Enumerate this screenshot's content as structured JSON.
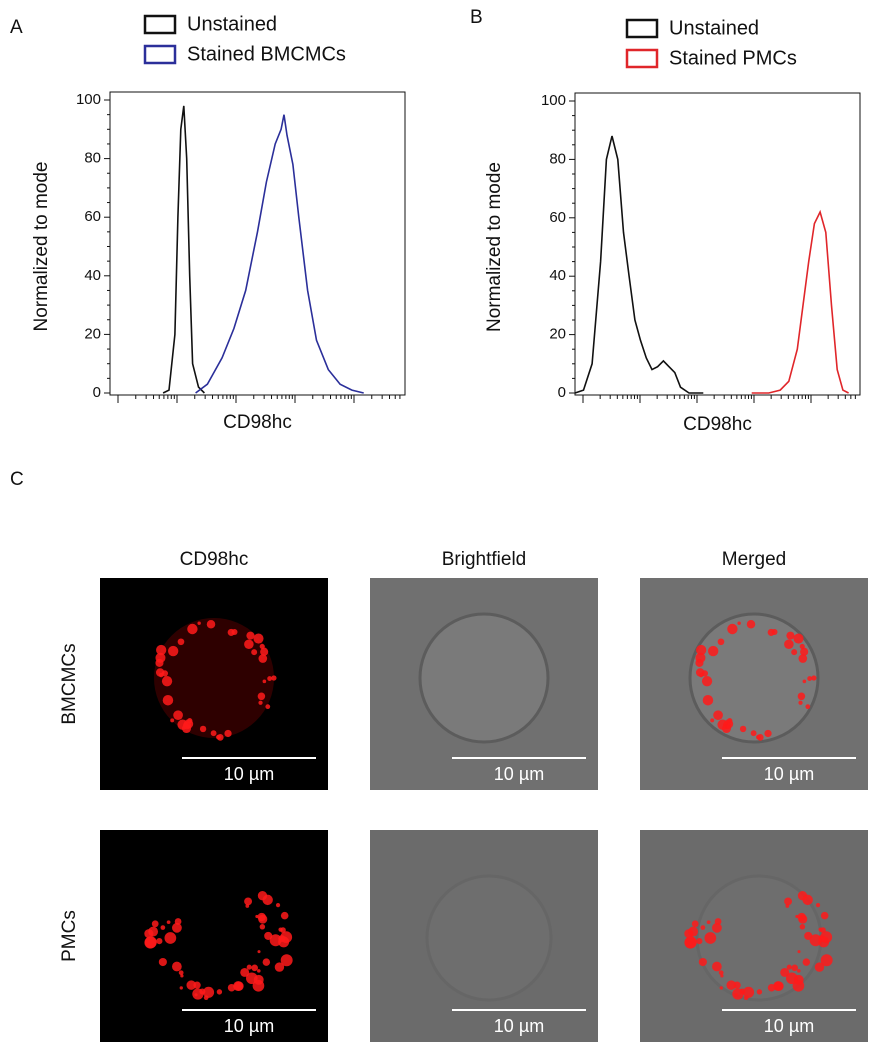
{
  "chart_data": [
    {
      "type": "line",
      "label": "A",
      "xlabel": "CD98hc",
      "ylabel": "Normalized to mode",
      "xlim": [
        0,
        100
      ],
      "ylim": [
        0,
        100
      ],
      "yticks": [
        0,
        20,
        40,
        60,
        80,
        100
      ],
      "series": [
        {
          "name": "Unstained",
          "color": "#111111",
          "x": [
            18,
            20,
            22,
            23,
            24,
            25,
            26,
            27,
            28,
            30,
            32
          ],
          "values": [
            0,
            1,
            20,
            60,
            90,
            98,
            80,
            40,
            10,
            2,
            0
          ]
        },
        {
          "name": "Stained BMCMCs",
          "color": "#2b2f9a",
          "x": [
            29,
            33,
            38,
            42,
            46,
            50,
            53,
            56,
            58,
            59,
            60,
            62,
            64,
            67,
            70,
            74,
            78,
            82,
            86
          ],
          "values": [
            0,
            3,
            12,
            22,
            35,
            55,
            72,
            85,
            90,
            95,
            88,
            78,
            60,
            35,
            18,
            8,
            3,
            1,
            0
          ]
        }
      ]
    },
    {
      "type": "line",
      "label": "B",
      "xlabel": "CD98hc",
      "ylabel": "Normalized to mode",
      "xlim": [
        0,
        100
      ],
      "ylim": [
        0,
        100
      ],
      "yticks": [
        0,
        20,
        40,
        60,
        80,
        100
      ],
      "series": [
        {
          "name": "Unstained",
          "color": "#111111",
          "x": [
            0,
            3,
            6,
            9,
            11,
            13,
            15,
            17,
            19,
            21,
            23,
            25,
            27,
            29,
            31,
            33,
            35,
            37,
            40,
            45
          ],
          "values": [
            0,
            1,
            10,
            45,
            80,
            88,
            80,
            55,
            40,
            25,
            18,
            12,
            8,
            9,
            11,
            9,
            7,
            2,
            0,
            0
          ]
        },
        {
          "name": "Stained PMCs",
          "color": "#e0262a",
          "x": [
            62,
            68,
            72,
            75,
            78,
            80,
            82,
            84,
            86,
            88,
            90,
            92,
            94,
            96
          ],
          "values": [
            0,
            0,
            1,
            4,
            15,
            30,
            45,
            58,
            62,
            55,
            30,
            8,
            1,
            0
          ]
        }
      ]
    }
  ],
  "panel_c": {
    "label": "C",
    "columns": [
      "CD98hc",
      "Brightfield",
      "Merged"
    ],
    "rows": [
      "BMCMCs",
      "PMCs"
    ],
    "scale_bar": "10 µm"
  }
}
